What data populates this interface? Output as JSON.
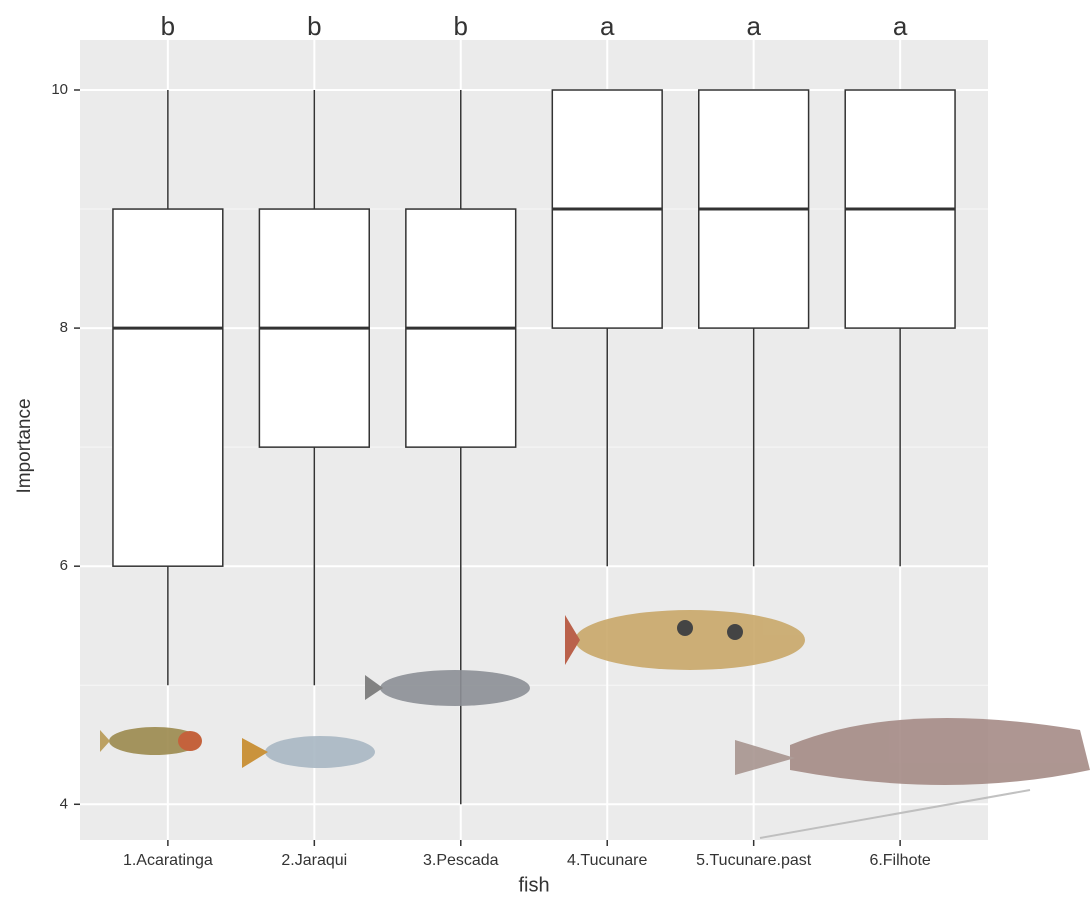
{
  "chart_data": {
    "type": "boxplot",
    "x_label": "fish",
    "y_label": "Importance",
    "categories": [
      "1.Acaratinga",
      "2.Jaraqui",
      "3.Pescada",
      "4.Tucunare",
      "5.Tucunare.past",
      "6.Filhote"
    ],
    "annotations": [
      "b",
      "b",
      "b",
      "a",
      "a",
      "a"
    ],
    "min": [
      5,
      5,
      4,
      6,
      6,
      6
    ],
    "q1": [
      6,
      7,
      7,
      8,
      8,
      8
    ],
    "median": [
      8,
      8,
      8,
      9,
      9,
      9
    ],
    "q3": [
      9,
      9,
      9,
      10,
      10,
      10
    ],
    "max": [
      10,
      10,
      10,
      10,
      10,
      10
    ],
    "color": "#ffffff",
    "ylim": [
      3.7,
      10.42
    ],
    "yticks": [
      4,
      6,
      8,
      10
    ],
    "minor_yticks": [
      5,
      7,
      9
    ],
    "grid": true
  }
}
